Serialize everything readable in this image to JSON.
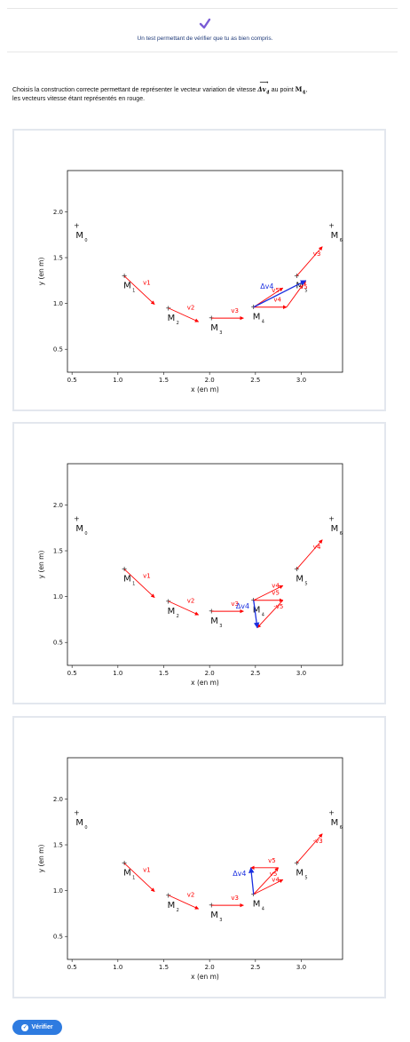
{
  "header": {
    "check_icon": "checkmark-icon",
    "subtitle": "Un test permettant de vérifier que tu as bien compris."
  },
  "question": {
    "text_before": "Choisis la construction correcte permettant de représenter le vecteur variation de vitesse ",
    "vector_symbol": "Δv",
    "vector_index": "4",
    "text_middle": " au point ",
    "point": "M",
    "point_index": "4",
    "text_after": ",",
    "line2": "les vecteurs vitesse étant représentés en rouge."
  },
  "colors": {
    "velocity": "#ff0000",
    "delta": "#1a2fe0",
    "accent": "#2e7be0",
    "subtitle": "#1f3a78"
  },
  "chart_data": [
    {
      "type": "scatter",
      "xlabel": "x (en m)",
      "ylabel": "y (en m)",
      "xlim": [
        0.45,
        3.45
      ],
      "ylim": [
        0.25,
        2.45
      ],
      "xticks": [
        "0.5",
        "1.0",
        "1.5",
        "2.0",
        "2.5",
        "3.0"
      ],
      "yticks": [
        "0.5",
        "1.0",
        "1.5",
        "2.0"
      ],
      "points": [
        {
          "name": "M",
          "sub": "0",
          "x": 0.55,
          "y": 1.85
        },
        {
          "name": "M",
          "sub": "1",
          "x": 1.07,
          "y": 1.3
        },
        {
          "name": "M",
          "sub": "2",
          "x": 1.55,
          "y": 0.95
        },
        {
          "name": "M",
          "sub": "3",
          "x": 2.02,
          "y": 0.84
        },
        {
          "name": "M",
          "sub": "4",
          "x": 2.48,
          "y": 0.96
        },
        {
          "name": "M",
          "sub": "5",
          "x": 2.95,
          "y": 1.3
        },
        {
          "name": "M",
          "sub": "6",
          "x": 3.33,
          "y": 1.85
        }
      ],
      "velocity_labels": [
        "v1",
        "v2",
        "v3",
        "v4",
        "v5",
        "v3",
        "v5"
      ],
      "delta_label": "Δv4"
    },
    {
      "type": "scatter",
      "xlabel": "x (en m)",
      "ylabel": "y (en m)",
      "xlim": [
        0.45,
        3.45
      ],
      "ylim": [
        0.25,
        2.45
      ],
      "xticks": [
        "0.5",
        "1.0",
        "1.5",
        "2.0",
        "2.5",
        "3.0"
      ],
      "yticks": [
        "0.5",
        "1.0",
        "1.5",
        "2.0"
      ],
      "points": [
        {
          "name": "M",
          "sub": "0",
          "x": 0.55,
          "y": 1.85
        },
        {
          "name": "M",
          "sub": "1",
          "x": 1.07,
          "y": 1.3
        },
        {
          "name": "M",
          "sub": "2",
          "x": 1.55,
          "y": 0.95
        },
        {
          "name": "M",
          "sub": "3",
          "x": 2.02,
          "y": 0.84
        },
        {
          "name": "M",
          "sub": "4",
          "x": 2.48,
          "y": 0.96
        },
        {
          "name": "M",
          "sub": "5",
          "x": 2.95,
          "y": 1.3
        },
        {
          "name": "M",
          "sub": "6",
          "x": 3.33,
          "y": 1.85
        }
      ],
      "velocity_labels": [
        "v1",
        "v2",
        "v3",
        "v4",
        "v5",
        "v4",
        "-v5"
      ],
      "delta_label": "Δv4"
    },
    {
      "type": "scatter",
      "xlabel": "x (en m)",
      "ylabel": "y (en m)",
      "xlim": [
        0.45,
        3.45
      ],
      "ylim": [
        0.25,
        2.45
      ],
      "xticks": [
        "0.5",
        "1.0",
        "1.5",
        "2.0",
        "2.5",
        "3.0"
      ],
      "yticks": [
        "0.5",
        "1.0",
        "1.5",
        "2.0"
      ],
      "points": [
        {
          "name": "M",
          "sub": "0",
          "x": 0.55,
          "y": 1.85
        },
        {
          "name": "M",
          "sub": "1",
          "x": 1.07,
          "y": 1.3
        },
        {
          "name": "M",
          "sub": "2",
          "x": 1.55,
          "y": 0.95
        },
        {
          "name": "M",
          "sub": "3",
          "x": 2.02,
          "y": 0.84
        },
        {
          "name": "M",
          "sub": "4",
          "x": 2.48,
          "y": 0.96
        },
        {
          "name": "M",
          "sub": "5",
          "x": 2.95,
          "y": 1.3
        },
        {
          "name": "M",
          "sub": "6",
          "x": 3.33,
          "y": 1.85
        }
      ],
      "velocity_labels": [
        "v1",
        "v2",
        "v3",
        "v4",
        "v5",
        "-v3",
        "v5"
      ],
      "delta_label": "Δv4"
    }
  ],
  "arrows": [
    [
      {
        "c": "v",
        "x1": 1.07,
        "y1": 1.3,
        "x2": 1.4,
        "y2": 0.99
      },
      {
        "c": "v",
        "x1": 1.55,
        "y1": 0.95,
        "x2": 1.88,
        "y2": 0.8
      },
      {
        "c": "v",
        "x1": 2.02,
        "y1": 0.84,
        "x2": 2.37,
        "y2": 0.84
      },
      {
        "c": "v",
        "x1": 2.48,
        "y1": 0.96,
        "x2": 2.84,
        "y2": 0.96
      },
      {
        "c": "v",
        "x1": 2.48,
        "y1": 0.96,
        "x2": 2.8,
        "y2": 1.17
      },
      {
        "c": "v",
        "x1": 2.95,
        "y1": 1.3,
        "x2": 3.23,
        "y2": 1.62
      },
      {
        "c": "v",
        "x1": 2.84,
        "y1": 0.96,
        "x2": 3.05,
        "y2": 1.25
      },
      {
        "c": "d",
        "x1": 2.48,
        "y1": 0.96,
        "x2": 3.05,
        "y2": 1.25
      }
    ],
    [
      {
        "c": "v",
        "x1": 1.07,
        "y1": 1.3,
        "x2": 1.4,
        "y2": 0.99
      },
      {
        "c": "v",
        "x1": 1.55,
        "y1": 0.95,
        "x2": 1.88,
        "y2": 0.8
      },
      {
        "c": "v",
        "x1": 2.02,
        "y1": 0.84,
        "x2": 2.37,
        "y2": 0.84
      },
      {
        "c": "v",
        "x1": 2.48,
        "y1": 0.96,
        "x2": 2.8,
        "y2": 1.12
      },
      {
        "c": "v",
        "x1": 2.48,
        "y1": 0.96,
        "x2": 2.8,
        "y2": 0.96
      },
      {
        "c": "v",
        "x1": 2.95,
        "y1": 1.3,
        "x2": 3.23,
        "y2": 1.62
      },
      {
        "c": "v",
        "x1": 2.8,
        "y1": 0.96,
        "x2": 2.52,
        "y2": 0.66
      },
      {
        "c": "d",
        "x1": 2.48,
        "y1": 0.96,
        "x2": 2.52,
        "y2": 0.66
      }
    ],
    [
      {
        "c": "v",
        "x1": 1.07,
        "y1": 1.3,
        "x2": 1.4,
        "y2": 0.99
      },
      {
        "c": "v",
        "x1": 1.55,
        "y1": 0.95,
        "x2": 1.88,
        "y2": 0.8
      },
      {
        "c": "v",
        "x1": 2.02,
        "y1": 0.84,
        "x2": 2.37,
        "y2": 0.84
      },
      {
        "c": "v",
        "x1": 2.48,
        "y1": 0.96,
        "x2": 2.8,
        "y2": 1.12
      },
      {
        "c": "v",
        "x1": 2.48,
        "y1": 0.96,
        "x2": 2.75,
        "y2": 1.25
      },
      {
        "c": "v",
        "x1": 2.95,
        "y1": 1.3,
        "x2": 3.23,
        "y2": 1.62
      },
      {
        "c": "v",
        "x1": 2.75,
        "y1": 1.25,
        "x2": 2.45,
        "y2": 1.25
      },
      {
        "c": "d",
        "x1": 2.48,
        "y1": 0.96,
        "x2": 2.45,
        "y2": 1.25
      }
    ]
  ],
  "actions": {
    "verify_label": "Vérifier",
    "verify_icon": "check-circle-icon"
  }
}
